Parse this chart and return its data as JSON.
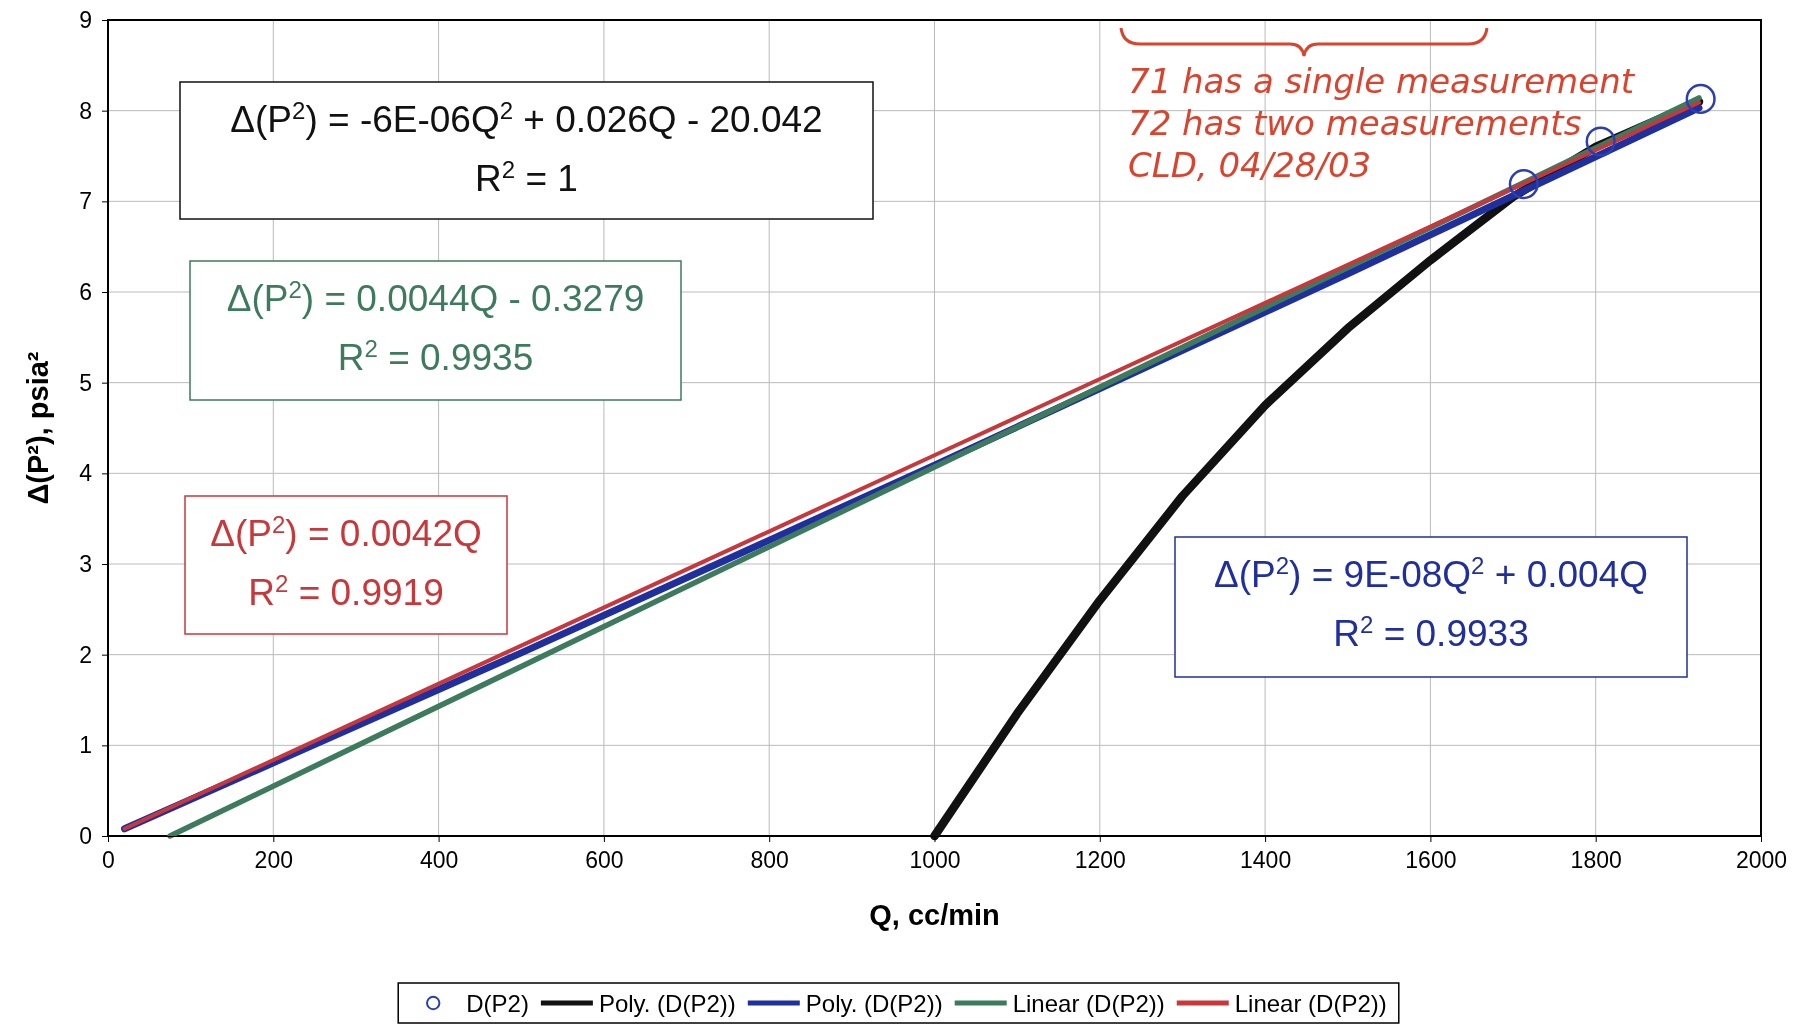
{
  "chart_data": {
    "type": "line",
    "xlabel": "Q, cc/min",
    "ylabel": "Δ(P²), psia²",
    "xlim": [
      0,
      2000
    ],
    "xticks": [
      0,
      200,
      400,
      600,
      800,
      1000,
      1200,
      1400,
      1600,
      1800,
      2000
    ],
    "ylim": [
      0,
      9
    ],
    "yticks": [
      0,
      1,
      2,
      3,
      4,
      5,
      6,
      7,
      8,
      9
    ],
    "grid": true,
    "legend": "bottom",
    "series": [
      {
        "name": "D(P2)",
        "type": "scatter",
        "marker": "circle",
        "color": "#2b3fb0",
        "x": [
          1713,
          1806,
          1927
        ],
        "values": [
          7.19,
          7.66,
          8.13
        ]
      },
      {
        "name": "Poly. (D(P2))",
        "color": "#111111",
        "x": [
          1000,
          1100,
          1200,
          1300,
          1400,
          1500,
          1600,
          1700,
          1800,
          1925
        ],
        "values": [
          0,
          1.35,
          2.6,
          3.75,
          4.75,
          5.6,
          6.35,
          7.05,
          7.6,
          8.1
        ]
      },
      {
        "name": "Poly. (D(P2))",
        "color": "#1f2f9e",
        "x": [
          20,
          500,
          1000,
          1500,
          1925
        ],
        "values": [
          0.08,
          2.02,
          4.09,
          6.2,
          8.03
        ]
      },
      {
        "name": "Linear (D(P2))",
        "color": "#3d7a5e",
        "x": [
          75,
          500,
          1000,
          1500,
          1925
        ],
        "values": [
          0,
          1.87,
          4.07,
          6.27,
          8.14
        ]
      },
      {
        "name": "Linear (D(P2))",
        "color": "#c8373a",
        "x": [
          20,
          500,
          1000,
          1500,
          1925
        ],
        "values": [
          0.08,
          2.1,
          4.2,
          6.3,
          8.09
        ]
      }
    ],
    "annotations": [
      "Δ(P$^{2}$) = -6E-06Q$^{2}$ + 0.026Q - 20.042\nR$^{2}$ = 1",
      "Δ(P$^{2}$) = 9E-08Q$^{2}$ + 0.004Q\nR$^{2}$ = 0.9933",
      "Δ(P$^{2}$) = 0.0044Q - 0.3279\nR$^{2}$ = 0.9935",
      "Δ(P$^{2}$) = 0.0042Q\nR$^{2}$ = 0.9919",
      "71 has a single measurement\n72 has two measurements\nCLD, 04/28/03"
    ]
  }
}
